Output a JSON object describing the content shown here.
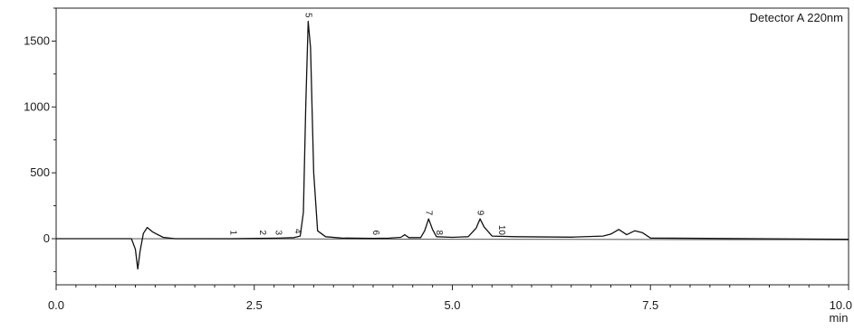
{
  "chart_data": {
    "type": "line",
    "title": "",
    "xlabel": "min",
    "ylabel": "",
    "detector_label": "Detector A 220nm",
    "xlim": [
      0,
      10
    ],
    "ylim": [
      -350,
      1750
    ],
    "x_ticks": [
      {
        "value": 0.0,
        "label": "0.0"
      },
      {
        "value": 2.5,
        "label": "2.5"
      },
      {
        "value": 5.0,
        "label": "5.0"
      },
      {
        "value": 7.5,
        "label": "7.5"
      },
      {
        "value": 10.0,
        "label": "10.0"
      }
    ],
    "y_ticks": [
      {
        "value": 1500,
        "label": "1500"
      },
      {
        "value": 1000,
        "label": "1000"
      },
      {
        "value": 500,
        "label": "500"
      },
      {
        "value": 0,
        "label": "0"
      }
    ],
    "grid": false,
    "baseline_points": [
      [
        0,
        0
      ],
      [
        0.95,
        0
      ],
      [
        1.0,
        -80
      ],
      [
        1.03,
        -230
      ],
      [
        1.06,
        -90
      ],
      [
        1.1,
        40
      ],
      [
        1.15,
        85
      ],
      [
        1.22,
        50
      ],
      [
        1.35,
        10
      ],
      [
        1.5,
        0
      ],
      [
        2.2,
        0
      ],
      [
        2.55,
        2
      ],
      [
        2.8,
        4
      ],
      [
        3.0,
        8
      ],
      [
        3.08,
        20
      ],
      [
        3.12,
        200
      ],
      [
        3.15,
        1000
      ],
      [
        3.18,
        1650
      ],
      [
        3.21,
        1450
      ],
      [
        3.25,
        500
      ],
      [
        3.3,
        60
      ],
      [
        3.4,
        15
      ],
      [
        3.6,
        5
      ],
      [
        4.0,
        3
      ],
      [
        4.2,
        4
      ],
      [
        4.35,
        10
      ],
      [
        4.4,
        30
      ],
      [
        4.45,
        8
      ],
      [
        4.6,
        8
      ],
      [
        4.65,
        60
      ],
      [
        4.7,
        150
      ],
      [
        4.75,
        70
      ],
      [
        4.8,
        15
      ],
      [
        5.0,
        10
      ],
      [
        5.2,
        15
      ],
      [
        5.3,
        80
      ],
      [
        5.35,
        150
      ],
      [
        5.4,
        90
      ],
      [
        5.5,
        20
      ],
      [
        5.8,
        15
      ],
      [
        6.5,
        12
      ],
      [
        6.9,
        20
      ],
      [
        7.0,
        35
      ],
      [
        7.1,
        70
      ],
      [
        7.2,
        30
      ],
      [
        7.3,
        60
      ],
      [
        7.4,
        45
      ],
      [
        7.5,
        5
      ],
      [
        10,
        -5
      ]
    ],
    "secondary_baseline_points": [
      [
        0,
        0
      ],
      [
        1.5,
        -1
      ],
      [
        3.0,
        -2
      ],
      [
        5.0,
        -4
      ],
      [
        7.5,
        -6
      ],
      [
        10,
        -8
      ]
    ],
    "peaks": [
      {
        "label": "1",
        "x": 2.23,
        "y": 0
      },
      {
        "label": "2",
        "x": 2.6,
        "y": 0
      },
      {
        "label": "3",
        "x": 2.8,
        "y": 0
      },
      {
        "label": "4",
        "x": 3.05,
        "y": 10
      },
      {
        "label": "5",
        "x": 3.18,
        "y": 1650
      },
      {
        "label": "6",
        "x": 4.03,
        "y": 0
      },
      {
        "label": "7",
        "x": 4.7,
        "y": 150
      },
      {
        "label": "8",
        "x": 4.83,
        "y": 0
      },
      {
        "label": "9",
        "x": 5.35,
        "y": 150
      },
      {
        "label": "10",
        "x": 5.62,
        "y": 0
      }
    ]
  }
}
